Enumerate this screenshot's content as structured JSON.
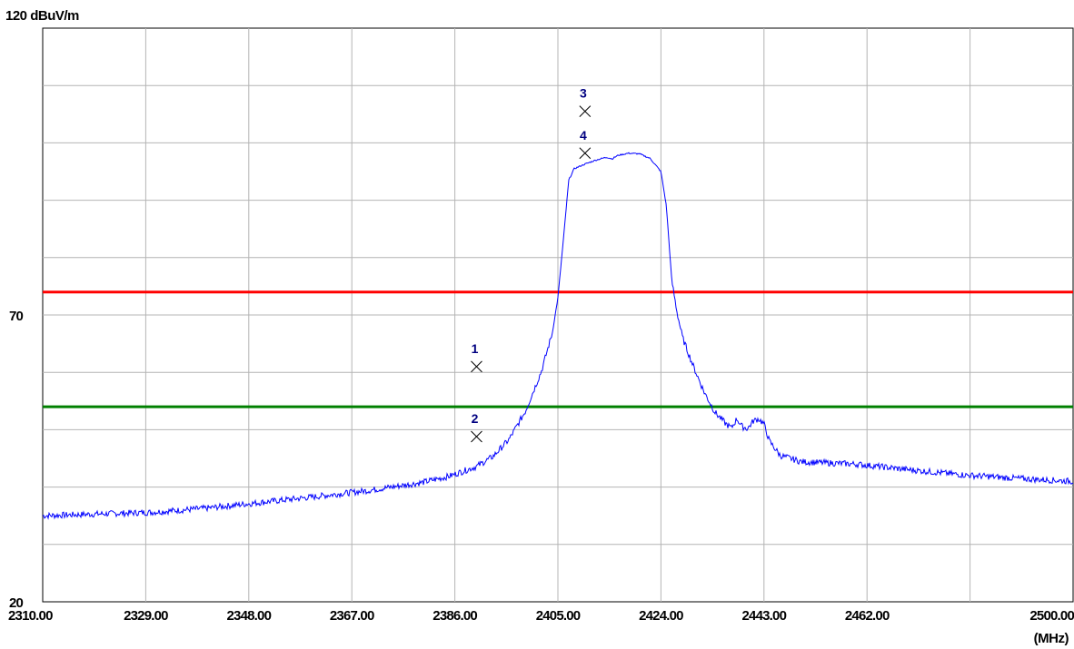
{
  "chart_data": {
    "type": "line",
    "y_axis_label": "120 dBuV/m",
    "x_unit": "(MHz)",
    "xlim": [
      2310,
      2500
    ],
    "ylim": [
      20,
      120
    ],
    "x_tick_labels": [
      "2310.00",
      "2329.00",
      "2348.00",
      "2367.00",
      "2386.00",
      "2405.00",
      "2424.00",
      "2443.00",
      "2462.00",
      "2500.00"
    ],
    "y_tick_labels": [
      "70",
      "20"
    ],
    "grid": true,
    "series": [
      {
        "color": "#0000ff",
        "x": [
          2310,
          2320,
          2330,
          2340,
          2350,
          2360,
          2370,
          2380,
          2385,
          2390,
          2393,
          2396,
          2399,
          2402,
          2404,
          2405,
          2406,
          2407,
          2408,
          2410,
          2412,
          2414,
          2415,
          2416,
          2418,
          2420,
          2422,
          2424,
          2425,
          2426,
          2427,
          2428,
          2430,
          2432,
          2434,
          2436,
          2437,
          2438,
          2439,
          2440,
          2441,
          2442,
          2443,
          2444,
          2446,
          2450,
          2460,
          2470,
          2480,
          2490,
          2500
        ],
        "y": [
          35,
          35.3,
          35.6,
          36.3,
          37.3,
          38.3,
          39.4,
          40.8,
          41.9,
          43.6,
          45.3,
          48.3,
          53.2,
          60.3,
          67,
          73,
          83,
          93.5,
          95.5,
          96.3,
          97,
          97.5,
          97.2,
          97.8,
          98.2,
          98.1,
          97.3,
          95,
          89,
          76,
          70.3,
          66,
          61,
          56.5,
          53,
          51,
          50.3,
          51.9,
          50.5,
          50.2,
          51.5,
          51.9,
          51,
          48,
          45.5,
          44.4,
          44,
          43,
          42.1,
          41.5,
          41
        ]
      }
    ],
    "limit_lines": [
      {
        "color": "#ff0000",
        "y": 74
      },
      {
        "color": "#008000",
        "y": 54
      }
    ],
    "markers": [
      {
        "label": "1",
        "x": 2390,
        "y": 61
      },
      {
        "label": "2",
        "x": 2390,
        "y": 48.8
      },
      {
        "label": "3",
        "x": 2410,
        "y": 105.5
      },
      {
        "label": "4",
        "x": 2410,
        "y": 98.2
      }
    ]
  }
}
